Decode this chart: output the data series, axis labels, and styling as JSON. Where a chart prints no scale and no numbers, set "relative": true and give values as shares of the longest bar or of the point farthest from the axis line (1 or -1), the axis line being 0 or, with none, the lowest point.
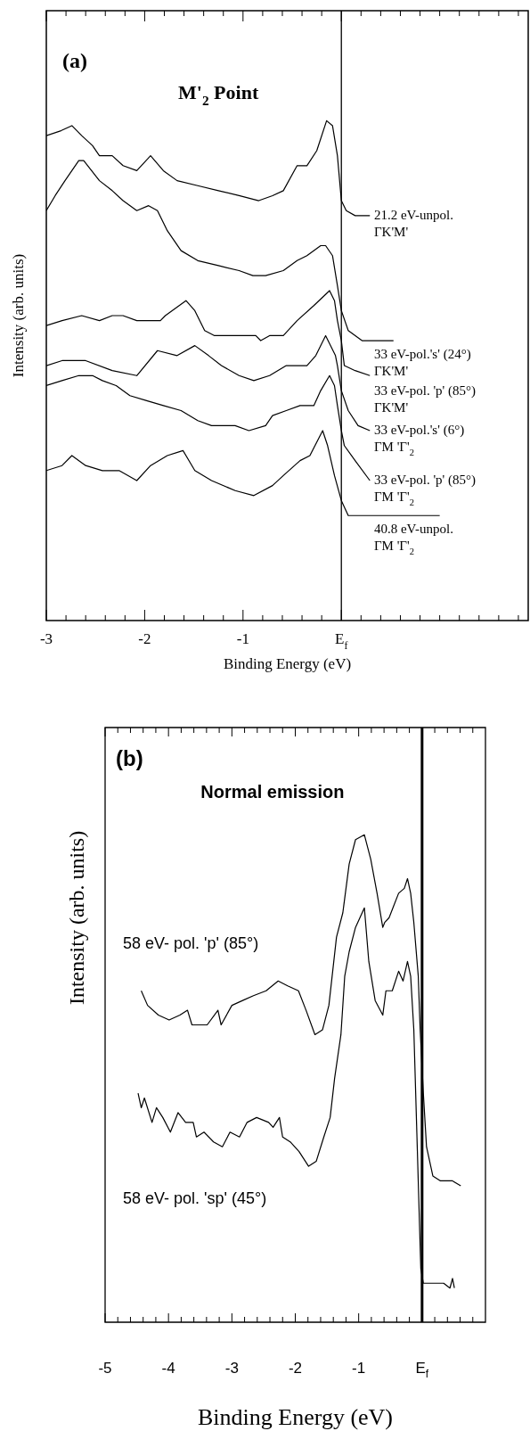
{
  "chart_data": [
    {
      "type": "line",
      "title": "M'$_{2}$ Point",
      "xlabel": "Binding Energy (eV)",
      "ylabel": "Intensity (arb. units)",
      "annotations": [
        "(a)"
      ],
      "relative": true,
      "tick_labels": "x",
      "marker": "none",
      "line_style": "solid",
      "xlim": [
        -3,
        1.9
      ],
      "xticks": [
        -3,
        {
          "value": -2.8,
          "label": null
        },
        {
          "value": -2.6,
          "label": null
        },
        {
          "value": -2.4,
          "label": null
        },
        {
          "value": -2.2,
          "label": null
        },
        -2,
        {
          "value": -1.8,
          "label": null
        },
        {
          "value": -1.6,
          "label": null
        },
        {
          "value": -1.4,
          "label": null
        },
        {
          "value": -1.2,
          "label": null
        },
        -1,
        {
          "value": -0.8,
          "label": null
        },
        {
          "value": -0.6,
          "label": null
        },
        {
          "value": -0.4,
          "label": null
        },
        {
          "value": -0.2,
          "label": null
        },
        {
          "value": 0,
          "label": "E$_{f}$"
        },
        {
          "value": 0.2,
          "label": null
        },
        {
          "value": 0.4,
          "label": null
        },
        {
          "value": 0.6,
          "label": null
        },
        {
          "value": 0.8,
          "label": null
        },
        {
          "value": 1,
          "label": null
        },
        {
          "value": 1.2,
          "label": null
        },
        {
          "value": 1.4,
          "label": null
        },
        {
          "value": 1.6,
          "label": null
        },
        {
          "value": 1.8,
          "label": null
        }
      ],
      "ref_lines": [
        {
          "axis": "x",
          "value": 0,
          "color": "#000000"
        }
      ],
      "series": [
        {
          "name": "21.2 eV-unpol.\nΓK'M'",
          "color": "#000000",
          "x": [
            -3.0,
            -2.85,
            -2.74,
            -2.64,
            -2.53,
            -2.46,
            -2.33,
            -2.22,
            -2.08,
            -1.94,
            -1.81,
            -1.67,
            -1.46,
            -1.25,
            -1.04,
            -0.84,
            -0.7,
            -0.59,
            -0.45,
            -0.35,
            -0.25,
            -0.15,
            -0.09,
            -0.04,
            0.0,
            0.05,
            0.14,
            0.29
          ],
          "values": [
            0.97,
            0.98,
            0.99,
            0.97,
            0.95,
            0.93,
            0.93,
            0.91,
            0.9,
            0.93,
            0.9,
            0.88,
            0.87,
            0.86,
            0.85,
            0.84,
            0.85,
            0.86,
            0.91,
            0.91,
            0.94,
            1.0,
            0.99,
            0.93,
            0.84,
            0.82,
            0.81,
            0.81
          ]
        },
        {
          "name": "33 eV-pol.'s' (24°)\nΓK'M'",
          "color": "#000000",
          "x": [
            -3.0,
            -2.91,
            -2.81,
            -2.67,
            -2.62,
            -2.46,
            -2.33,
            -2.22,
            -2.08,
            -1.96,
            -1.87,
            -1.77,
            -1.63,
            -1.46,
            -1.25,
            -1.04,
            -0.9,
            -0.77,
            -0.59,
            -0.45,
            -0.35,
            -0.21,
            -0.16,
            -0.09,
            -0.04,
            0.0,
            0.07,
            0.21,
            0.34,
            0.53
          ],
          "values": [
            0.82,
            0.85,
            0.88,
            0.92,
            0.92,
            0.88,
            0.86,
            0.84,
            0.82,
            0.83,
            0.82,
            0.78,
            0.74,
            0.72,
            0.71,
            0.7,
            0.69,
            0.69,
            0.7,
            0.72,
            0.73,
            0.75,
            0.75,
            0.73,
            0.67,
            0.62,
            0.58,
            0.56,
            0.56,
            0.56
          ]
        },
        {
          "name": "33 eV-pol. 'p' (85°)\nΓK'M'",
          "color": "#000000",
          "x": [
            -3.0,
            -2.84,
            -2.64,
            -2.46,
            -2.33,
            -2.22,
            -2.08,
            -1.94,
            -1.84,
            -1.79,
            -1.58,
            -1.49,
            -1.39,
            -1.29,
            -1.04,
            -0.87,
            -0.82,
            -0.73,
            -0.59,
            -0.45,
            -0.28,
            -0.12,
            -0.07,
            -0.04,
            0.0,
            0.03,
            0.14,
            0.29
          ],
          "values": [
            0.59,
            0.6,
            0.61,
            0.6,
            0.61,
            0.61,
            0.6,
            0.6,
            0.6,
            0.61,
            0.64,
            0.62,
            0.58,
            0.57,
            0.57,
            0.57,
            0.56,
            0.57,
            0.57,
            0.6,
            0.63,
            0.66,
            0.64,
            0.6,
            0.56,
            0.51,
            0.5,
            0.49
          ]
        },
        {
          "name": "33 eV-pol.'s' (6°)\nΓM 'Γ'$_{2}$",
          "color": "#000000",
          "x": [
            -3.0,
            -2.84,
            -2.6,
            -2.33,
            -2.08,
            -1.87,
            -1.67,
            -1.49,
            -1.35,
            -1.22,
            -1.04,
            -0.89,
            -0.73,
            -0.56,
            -0.35,
            -0.26,
            -0.16,
            -0.06,
            -0.04,
            0.0,
            0.07,
            0.17,
            0.29
          ],
          "values": [
            0.51,
            0.52,
            0.52,
            0.5,
            0.49,
            0.54,
            0.53,
            0.55,
            0.53,
            0.51,
            0.49,
            0.48,
            0.49,
            0.51,
            0.51,
            0.53,
            0.57,
            0.53,
            0.51,
            0.46,
            0.42,
            0.39,
            0.38
          ]
        },
        {
          "name": "33 eV-pol. 'p' (85°)\nΓM 'Γ'$_{2}$",
          "color": "#000000",
          "x": [
            -3.0,
            -2.84,
            -2.67,
            -2.53,
            -2.43,
            -2.29,
            -2.15,
            -1.98,
            -1.81,
            -1.63,
            -1.46,
            -1.32,
            -1.08,
            -0.94,
            -0.77,
            -0.7,
            -0.56,
            -0.42,
            -0.28,
            -0.21,
            -0.12,
            -0.07,
            -0.04,
            0.0,
            0.03,
            0.14,
            0.29
          ],
          "values": [
            0.47,
            0.48,
            0.49,
            0.49,
            0.48,
            0.47,
            0.45,
            0.44,
            0.43,
            0.42,
            0.4,
            0.39,
            0.39,
            0.38,
            0.39,
            0.41,
            0.42,
            0.43,
            0.43,
            0.46,
            0.49,
            0.47,
            0.43,
            0.38,
            0.35,
            0.32,
            0.28
          ]
        },
        {
          "name": "40.8 eV-unpol.\nΓM 'Γ'$_{2}$",
          "color": "#000000",
          "x": [
            -3.0,
            -2.84,
            -2.74,
            -2.6,
            -2.43,
            -2.26,
            -2.08,
            -1.94,
            -1.77,
            -1.61,
            -1.49,
            -1.32,
            -1.08,
            -0.89,
            -0.7,
            -0.59,
            -0.42,
            -0.32,
            -0.19,
            -0.14,
            -0.07,
            0.0,
            0.07,
            0.34,
            0.69,
            1.0
          ],
          "values": [
            0.3,
            0.31,
            0.33,
            0.31,
            0.3,
            0.3,
            0.28,
            0.31,
            0.33,
            0.34,
            0.3,
            0.28,
            0.26,
            0.25,
            0.27,
            0.29,
            0.32,
            0.33,
            0.38,
            0.35,
            0.29,
            0.24,
            0.21,
            0.21,
            0.21,
            0.21
          ]
        }
      ]
    },
    {
      "type": "line",
      "title": "Normal emission",
      "xlabel": "Binding Energy (eV)",
      "ylabel": "Intensity (arb. units)",
      "annotations": [
        "(b)"
      ],
      "relative": true,
      "tick_labels": "x",
      "marker": "none",
      "line_style": "solid",
      "xlim": [
        -5,
        1
      ],
      "xticks": [
        -5,
        {
          "value": -4.8,
          "label": null
        },
        {
          "value": -4.6,
          "label": null
        },
        {
          "value": -4.4,
          "label": null
        },
        {
          "value": -4.2,
          "label": null
        },
        -4,
        {
          "value": -3.8,
          "label": null
        },
        {
          "value": -3.6,
          "label": null
        },
        {
          "value": -3.4,
          "label": null
        },
        {
          "value": -3.2,
          "label": null
        },
        -3,
        {
          "value": -2.8,
          "label": null
        },
        {
          "value": -2.6,
          "label": null
        },
        {
          "value": -2.4,
          "label": null
        },
        {
          "value": -2.2,
          "label": null
        },
        -2,
        {
          "value": -1.8,
          "label": null
        },
        {
          "value": -1.6,
          "label": null
        },
        {
          "value": -1.4,
          "label": null
        },
        {
          "value": -1.2,
          "label": null
        },
        -1,
        {
          "value": -0.8,
          "label": null
        },
        {
          "value": -0.6,
          "label": null
        },
        {
          "value": -0.4,
          "label": null
        },
        {
          "value": -0.2,
          "label": null
        },
        {
          "value": 0,
          "label": "E$_{f}$"
        },
        {
          "value": 0.2,
          "label": null
        },
        {
          "value": 0.4,
          "label": null
        },
        {
          "value": 0.6,
          "label": null
        },
        {
          "value": 0.8,
          "label": null
        }
      ],
      "ref_lines": [
        {
          "axis": "x",
          "value": 0,
          "color": "#000000"
        }
      ],
      "series": [
        {
          "name": "58 eV- pol. 'p' (85°)",
          "color": "#000000",
          "x": [
            -4.43,
            -4.33,
            -4.16,
            -3.99,
            -3.82,
            -3.7,
            -3.63,
            -3.39,
            -3.22,
            -3.17,
            -3.0,
            -2.83,
            -2.66,
            -2.46,
            -2.27,
            -2.12,
            -1.95,
            -1.83,
            -1.69,
            -1.57,
            -1.47,
            -1.35,
            -1.25,
            -1.15,
            -1.05,
            -0.91,
            -0.81,
            -0.71,
            -0.62,
            -0.59,
            -0.52,
            -0.37,
            -0.28,
            -0.23,
            -0.18,
            -0.13,
            -0.06,
            -0.03,
            0.02,
            0.07,
            0.17,
            0.29,
            0.48,
            0.61
          ],
          "values": [
            0.68,
            0.65,
            0.63,
            0.62,
            0.63,
            0.64,
            0.61,
            0.61,
            0.64,
            0.61,
            0.65,
            0.66,
            0.67,
            0.68,
            0.7,
            0.69,
            0.68,
            0.64,
            0.59,
            0.6,
            0.65,
            0.79,
            0.84,
            0.94,
            0.99,
            1.0,
            0.95,
            0.88,
            0.81,
            0.82,
            0.83,
            0.88,
            0.89,
            0.91,
            0.88,
            0.82,
            0.71,
            0.6,
            0.47,
            0.36,
            0.3,
            0.29,
            0.29,
            0.28
          ]
        },
        {
          "name": "58 eV- pol. 'sp' (45°)",
          "color": "#000000",
          "x": [
            -4.48,
            -4.43,
            -4.38,
            -4.26,
            -4.19,
            -4.09,
            -3.97,
            -3.85,
            -3.73,
            -3.61,
            -3.56,
            -3.44,
            -3.29,
            -3.15,
            -3.03,
            -2.88,
            -2.76,
            -2.61,
            -2.42,
            -2.35,
            -2.25,
            -2.2,
            -2.08,
            -1.94,
            -1.79,
            -1.67,
            -1.55,
            -1.45,
            -1.38,
            -1.28,
            -1.22,
            -1.15,
            -1.05,
            -0.91,
            -0.84,
            -0.74,
            -0.62,
            -0.57,
            -0.47,
            -0.37,
            -0.3,
            -0.23,
            -0.18,
            -0.13,
            -0.02,
            0.02,
            0.15,
            0.34,
            0.44,
            0.48,
            0.51
          ],
          "values": [
            0.47,
            0.44,
            0.46,
            0.41,
            0.44,
            0.42,
            0.39,
            0.43,
            0.41,
            0.41,
            0.38,
            0.39,
            0.37,
            0.36,
            0.39,
            0.38,
            0.41,
            0.42,
            0.41,
            0.4,
            0.42,
            0.38,
            0.37,
            0.35,
            0.32,
            0.33,
            0.38,
            0.42,
            0.5,
            0.59,
            0.71,
            0.76,
            0.81,
            0.85,
            0.74,
            0.66,
            0.63,
            0.68,
            0.68,
            0.72,
            0.7,
            0.74,
            0.71,
            0.6,
            0.11,
            0.08,
            0.08,
            0.08,
            0.07,
            0.09,
            0.07
          ]
        }
      ]
    }
  ]
}
